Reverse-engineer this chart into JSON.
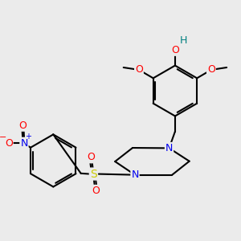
{
  "background_color": "#ebebeb",
  "bond_color": "#000000",
  "bond_width": 1.5,
  "atom_colors": {
    "C": "#000000",
    "N": "#0000ee",
    "O": "#ff0000",
    "S": "#cccc00",
    "H": "#008080"
  },
  "bg": "#ebebeb"
}
